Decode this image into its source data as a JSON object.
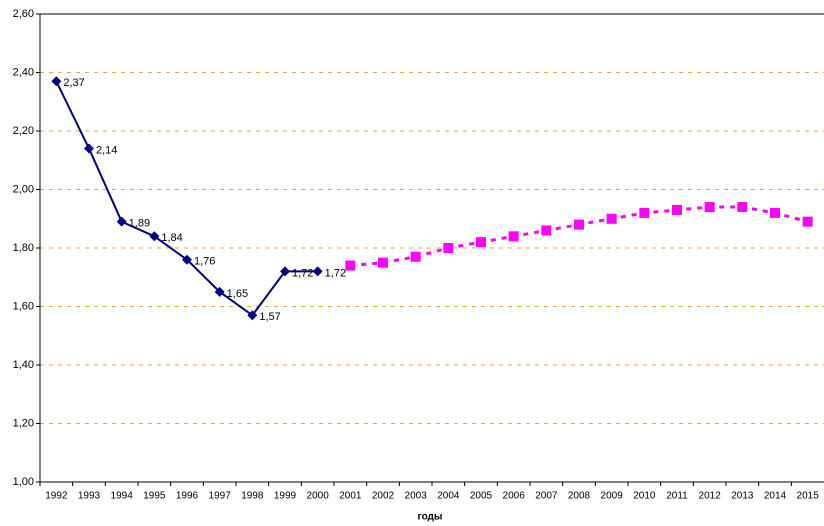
{
  "chart_data": {
    "type": "line",
    "x_label": "годы",
    "categories": [
      "1992",
      "1993",
      "1994",
      "1995",
      "1996",
      "1997",
      "1998",
      "1999",
      "2000",
      "2001",
      "2002",
      "2003",
      "2004",
      "2005",
      "2006",
      "2007",
      "2008",
      "2009",
      "2010",
      "2011",
      "2012",
      "2013",
      "2014",
      "2015"
    ],
    "series": [
      {
        "color": "#000080",
        "marker": "diamond",
        "dashed": false,
        "values": [
          2.37,
          2.14,
          1.89,
          1.84,
          1.76,
          1.65,
          1.57,
          1.72,
          1.72,
          null,
          null,
          null,
          null,
          null,
          null,
          null,
          null,
          null,
          null,
          null,
          null,
          null,
          null,
          null
        ],
        "value_labels": [
          "2,37",
          "2,14",
          "1,89",
          "1,84",
          "1,76",
          "1,65",
          "1,57",
          "1,72",
          "1,72",
          null,
          null,
          null,
          null,
          null,
          null,
          null,
          null,
          null,
          null,
          null,
          null,
          null,
          null,
          null
        ]
      },
      {
        "color": "#ff00ff",
        "marker": "square",
        "dashed": true,
        "values": [
          null,
          null,
          null,
          null,
          null,
          null,
          null,
          null,
          null,
          1.74,
          1.75,
          1.77,
          1.8,
          1.82,
          1.84,
          1.86,
          1.88,
          1.9,
          1.92,
          1.93,
          1.94,
          1.94,
          1.92,
          1.89
        ]
      }
    ],
    "ylim": [
      1.0,
      2.6
    ],
    "yticks": [
      {
        "value": 1.0,
        "label": "1,00"
      },
      {
        "value": 1.2,
        "label": "1,20"
      },
      {
        "value": 1.4,
        "label": "1,40"
      },
      {
        "value": 1.6,
        "label": "1,60"
      },
      {
        "value": 1.8,
        "label": "1,80"
      },
      {
        "value": 2.0,
        "label": "2,00"
      },
      {
        "value": 2.2,
        "label": "2,20"
      },
      {
        "value": 2.4,
        "label": "2,40"
      },
      {
        "value": 2.6,
        "label": "2,60"
      }
    ],
    "grid": true
  }
}
